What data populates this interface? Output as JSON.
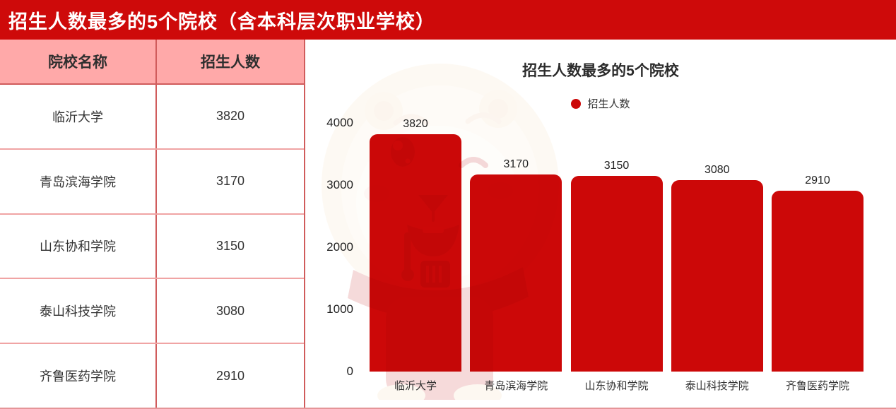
{
  "banner": {
    "title": "招生人数最多的5个院校（含本科层次职业学校）"
  },
  "table": {
    "headers": {
      "name": "院校名称",
      "value": "招生人数"
    },
    "rows": [
      {
        "name": "临沂大学",
        "value": "3820"
      },
      {
        "name": "青岛滨海学院",
        "value": "3170"
      },
      {
        "name": "山东协和学院",
        "value": "3150"
      },
      {
        "name": "泰山科技学院",
        "value": "3080"
      },
      {
        "name": "齐鲁医药学院",
        "value": "2910"
      }
    ]
  },
  "chart": {
    "title": "招生人数最多的5个院校",
    "legend_label": "招生人数"
  },
  "chart_data": {
    "type": "bar",
    "title": "招生人数最多的5个院校",
    "categories": [
      "临沂大学",
      "青岛滨海学院",
      "山东协和学院",
      "泰山科技学院",
      "齐鲁医药学院"
    ],
    "values": [
      3820,
      3170,
      3150,
      3080,
      2910
    ],
    "series": [
      {
        "name": "招生人数",
        "values": [
          3820,
          3170,
          3150,
          3080,
          2910
        ]
      }
    ],
    "xlabel": "",
    "ylabel": "",
    "ylim": [
      0,
      4000
    ],
    "yticks": [
      0,
      1000,
      2000,
      3000,
      4000
    ],
    "grid": false,
    "legend_position": "top",
    "bar_color": "#cc0808"
  },
  "icons": {
    "legend_dot": "filled-circle",
    "watermark": "lion-mascot"
  },
  "colors": {
    "banner_red": "#ce0a0a",
    "bar_red": "#cc0808",
    "header_pink": "#ffa9a9",
    "border_strong": "#d05c5c",
    "border_light": "#f0a4a4",
    "text_dark": "#2f2f2f"
  }
}
